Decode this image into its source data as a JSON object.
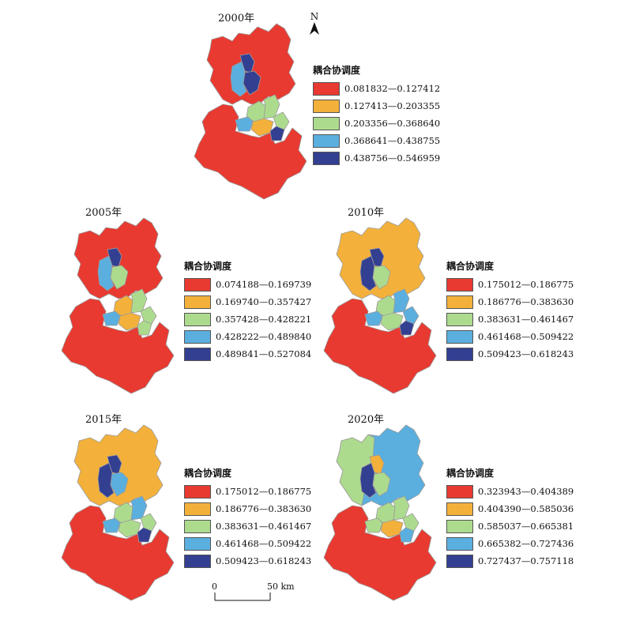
{
  "colors": [
    "#e83a31",
    "#f3b13b",
    "#addb8e",
    "#5aafdf",
    "#333f91"
  ],
  "north_label": "N",
  "scale": {
    "start": "0",
    "end": "50 km"
  },
  "panels": [
    {
      "year": "2000年",
      "legend_title": "耦合协调度",
      "classes": [
        "0.081832—0.127412",
        "0.127413—0.203355",
        "0.203356—0.368640",
        "0.368641—0.438755",
        "0.438756—0.546959"
      ],
      "region_classes": {
        "north_main": 0,
        "n_inner_left": 3,
        "n_inner_mid": 4,
        "n_inner_right": 4,
        "center_a": 2,
        "center_b": 2,
        "center_c": 1,
        "center_d": 3,
        "center_e": 4,
        "center_f": 2,
        "south_main": 0
      }
    },
    {
      "year": "2005年",
      "legend_title": "耦合协调度",
      "classes": [
        "0.074188—0.169739",
        "0.169740—0.357427",
        "0.357428—0.428221",
        "0.428222—0.489840",
        "0.489841—0.527084"
      ],
      "region_classes": {
        "north_main": 0,
        "n_inner_left": 3,
        "n_inner_mid": 4,
        "n_inner_right": 2,
        "center_a": 1,
        "center_b": 2,
        "center_c": 1,
        "center_d": 3,
        "center_e": 2,
        "center_f": 2,
        "south_main": 0
      }
    },
    {
      "year": "2010年",
      "legend_title": "耦合协调度",
      "classes": [
        "0.175012—0.186775",
        "0.186776—0.383630",
        "0.383631—0.461467",
        "0.461468—0.509422",
        "0.509423—0.618243"
      ],
      "region_classes": {
        "north_main": 1,
        "n_inner_left": 4,
        "n_inner_mid": 4,
        "n_inner_right": 2,
        "center_a": 2,
        "center_b": 3,
        "center_c": 2,
        "center_d": 3,
        "center_e": 4,
        "center_f": 3,
        "south_main": 0
      }
    },
    {
      "year": "2015年",
      "legend_title": "耦合协调度",
      "classes": [
        "0.175012—0.186775",
        "0.186776—0.383630",
        "0.383631—0.461467",
        "0.461468—0.509422",
        "0.509423—0.618243"
      ],
      "region_classes": {
        "north_main": 1,
        "n_inner_left": 4,
        "n_inner_mid": 4,
        "n_inner_right": 3,
        "center_a": 2,
        "center_b": 3,
        "center_c": 2,
        "center_d": 3,
        "center_e": 4,
        "center_f": 2,
        "south_main": 0
      }
    },
    {
      "year": "2020年",
      "legend_title": "耦合协调度",
      "classes": [
        "0.323943—0.404389",
        "0.404390—0.585036",
        "0.585037—0.665381",
        "0.665382—0.727436",
        "0.727437—0.757118"
      ],
      "region_classes": {
        "north_main": 3,
        "north_west": 2,
        "n_inner_left": 4,
        "n_inner_mid": 1,
        "n_inner_right": 2,
        "center_a": 2,
        "center_b": 2,
        "center_c": 1,
        "center_d": 2,
        "center_e": 3,
        "center_f": 2,
        "south_main": 0
      }
    }
  ]
}
